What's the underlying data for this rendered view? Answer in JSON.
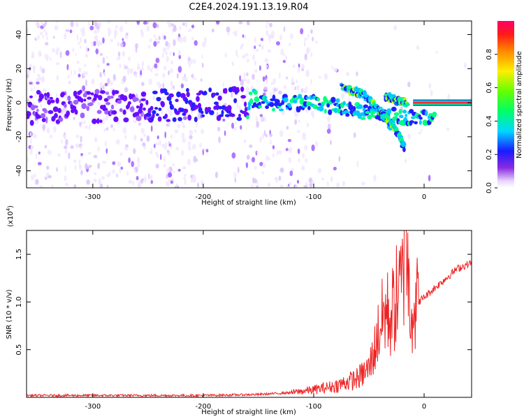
{
  "figure": {
    "title": "C2E4.2024.191.13.19.R04"
  },
  "colors": {
    "spectrogram_low": "#e6d2ff",
    "spectrogram_mid": "#7a1cff",
    "snr_line": "#ee2222"
  },
  "chart_data": [
    {
      "type": "heatmap",
      "xlabel": "Height of straight line (km)",
      "ylabel": "Frequency (Hz)",
      "xlim": [
        -360,
        43
      ],
      "ylim": [
        -50,
        48
      ],
      "x_ticks": [
        -300,
        -200,
        -100,
        0
      ],
      "x_tick_labels": [
        "-300",
        "-200",
        "-100",
        "0"
      ],
      "y_ticks": [
        -40,
        -20,
        0,
        20,
        40
      ],
      "y_tick_labels": [
        "-40",
        "-20",
        "0",
        "20",
        "40"
      ],
      "colorbar": {
        "label": "Normalized spectral amplitude",
        "range": [
          0.0,
          1.0
        ],
        "ticks": [
          0.0,
          0.2,
          0.4,
          0.6,
          0.8
        ],
        "tick_labels": [
          "0.0",
          "0.2",
          "0.4",
          "0.6",
          "0.8"
        ]
      },
      "features": [
        {
          "name": "main-band",
          "x": [
            -360,
            -100,
            -50,
            10
          ],
          "y": [
            -3,
            0,
            -6,
            -10
          ]
        },
        {
          "name": "descending-branch-1",
          "x": [
            -75,
            -55,
            -40,
            -30
          ],
          "y": [
            9,
            5,
            -5,
            -14
          ]
        },
        {
          "name": "descending-branch-2",
          "x": [
            -40,
            -30,
            -22,
            -18
          ],
          "y": [
            -5,
            -12,
            -20,
            -26
          ]
        },
        {
          "name": "ascending-branch",
          "x": [
            -35,
            -25,
            -15
          ],
          "y": [
            4,
            1,
            0
          ]
        },
        {
          "name": "strong-line",
          "x": [
            -10,
            43
          ],
          "y": [
            0,
            0
          ]
        }
      ]
    },
    {
      "type": "line",
      "xlabel": "Height of straight line (km)",
      "ylabel": "SNR (10 * v/v)",
      "y_scale_label": "(x10",
      "y_scale_exponent": "4",
      "y_scale_suffix": ")",
      "xlim": [
        -360,
        43
      ],
      "ylim": [
        0,
        1.75
      ],
      "x_ticks": [
        -300,
        -200,
        -100,
        0
      ],
      "x_tick_labels": [
        "-300",
        "-200",
        "-100",
        "0"
      ],
      "y_ticks": [
        0.5,
        1.0,
        1.5
      ],
      "y_tick_labels": [
        "0.5",
        "1.0",
        "1.5"
      ],
      "series": [
        {
          "x": [
            -360,
            -300,
            -200,
            -150,
            -120,
            -100,
            -80,
            -60,
            -50,
            -45,
            -40,
            -35,
            -30,
            -25,
            -20,
            -17,
            -15,
            -12,
            -8,
            -5,
            0,
            10,
            20,
            30,
            43
          ],
          "y": [
            0.02,
            0.02,
            0.02,
            0.03,
            0.05,
            0.08,
            0.12,
            0.2,
            0.3,
            0.5,
            0.75,
            0.9,
            0.85,
            1.05,
            1.15,
            1.75,
            1.3,
            1.0,
            0.95,
            1.0,
            1.05,
            1.15,
            1.25,
            1.35,
            1.41
          ]
        }
      ]
    }
  ]
}
